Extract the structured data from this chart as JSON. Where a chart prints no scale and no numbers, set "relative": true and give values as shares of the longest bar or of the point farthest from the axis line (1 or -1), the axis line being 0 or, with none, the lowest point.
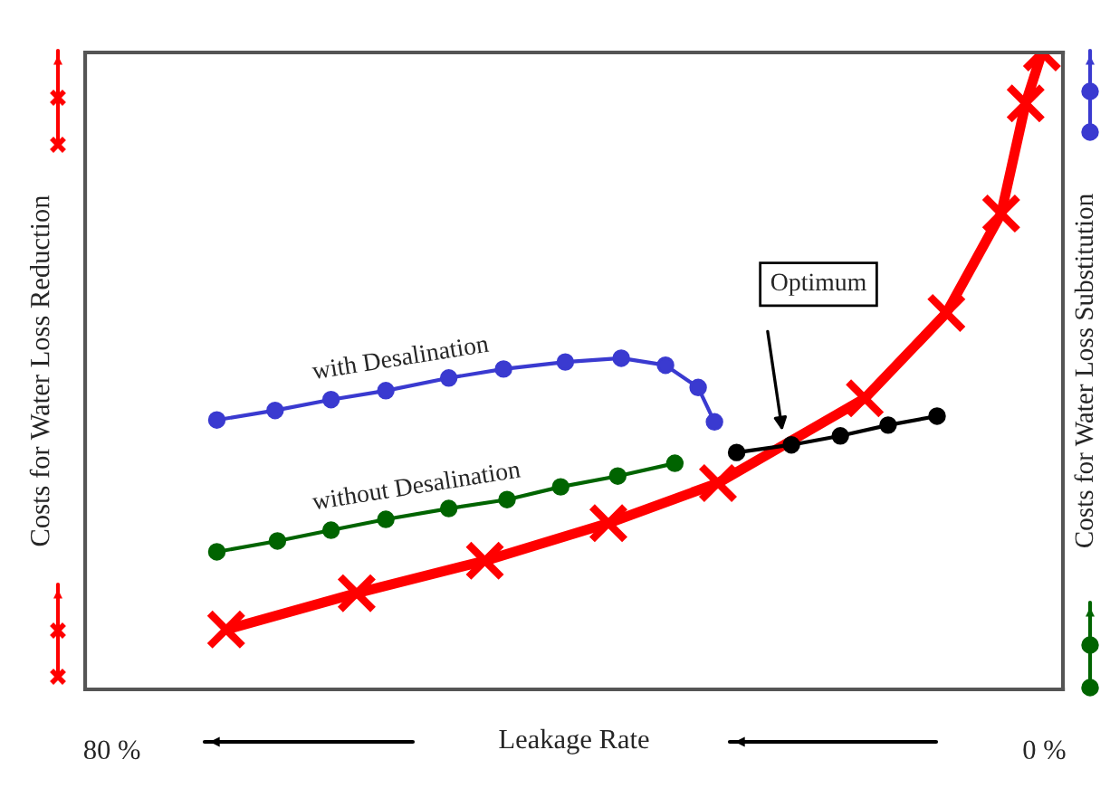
{
  "chart_data": {
    "type": "line",
    "relative": true,
    "xlabel": "Leakage Rate",
    "ylabel": "Costs for Water Loss Reduction",
    "y2label": "Costs for Water Loss Substitution",
    "xlim": [
      82.3,
      -1.6
    ],
    "xticks": [
      {
        "value": 80,
        "label": "80 %"
      },
      {
        "value": 0,
        "label": "0 %"
      }
    ],
    "tick_labels": "x",
    "grid": false,
    "legend": false,
    "series": [
      {
        "color": "#ff0000",
        "marker": "cross",
        "x": [
          70.2,
          59.0,
          48.0,
          37.4,
          28.0,
          15.4,
          8.4,
          3.7,
          1.6,
          0.2
        ],
        "values": [
          0.094,
          0.151,
          0.202,
          0.261,
          0.324,
          0.457,
          0.591,
          0.747,
          0.92,
          1.0
        ]
      },
      {
        "name": "with Desalination",
        "color": "#3a3ad0",
        "marker": "circle",
        "x": [
          71.0,
          66.0,
          61.2,
          56.5,
          51.1,
          46.4,
          41.1,
          36.3,
          32.5,
          29.7,
          28.3
        ],
        "values": [
          0.423,
          0.438,
          0.455,
          0.469,
          0.489,
          0.503,
          0.514,
          0.52,
          0.509,
          0.474,
          0.42
        ]
      },
      {
        "name": "without Desalination",
        "color": "#006400",
        "marker": "circle",
        "x": [
          71.0,
          65.8,
          61.2,
          56.5,
          51.1,
          46.1,
          41.5,
          36.6,
          31.7
        ],
        "values": [
          0.216,
          0.233,
          0.25,
          0.267,
          0.284,
          0.298,
          0.318,
          0.335,
          0.355
        ]
      },
      {
        "color": "#000000",
        "marker": "circle",
        "x": [
          26.4,
          21.7,
          17.5,
          13.4,
          9.2
        ],
        "values": [
          0.372,
          0.384,
          0.398,
          0.415,
          0.429
        ]
      }
    ],
    "annotations": [
      "Optimum"
    ]
  }
}
